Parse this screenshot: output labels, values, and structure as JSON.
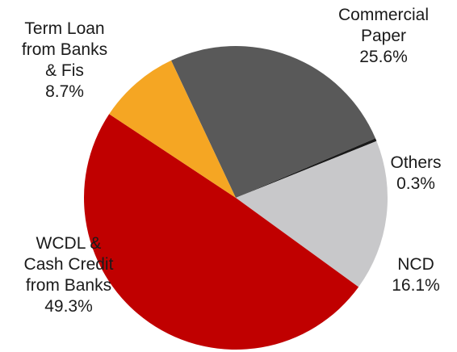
{
  "chart_data": {
    "type": "pie",
    "title": "",
    "slices": [
      {
        "label_lines": [
          "Commercial",
          "Paper"
        ],
        "value": 25.6,
        "value_label": "25.6%",
        "color": "#595959"
      },
      {
        "label_lines": [
          "Others"
        ],
        "value": 0.3,
        "value_label": "0.3%",
        "color": "#1a1a1a"
      },
      {
        "label_lines": [
          "NCD"
        ],
        "value": 16.1,
        "value_label": "16.1%",
        "color": "#c8c8ca"
      },
      {
        "label_lines": [
          "WCDL &",
          "Cash Credit",
          "from Banks"
        ],
        "value": 49.3,
        "value_label": "49.3%",
        "color": "#c00000"
      },
      {
        "label_lines": [
          "Term Loan",
          "from Banks",
          "& Fis"
        ],
        "value": 8.7,
        "value_label": "8.7%",
        "color": "#f5a623"
      }
    ]
  }
}
